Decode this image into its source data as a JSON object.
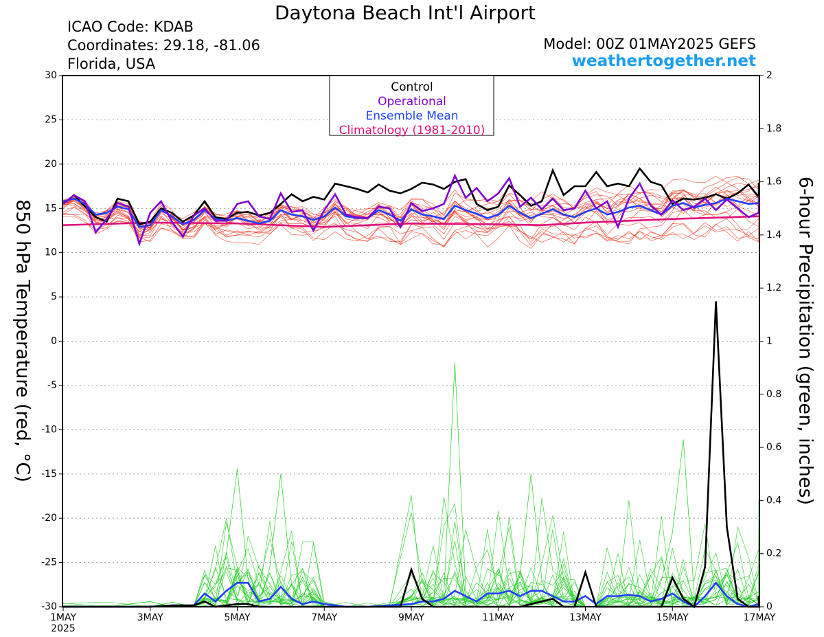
{
  "header": {
    "title": "Daytona Beach Int'l Airport",
    "icao": "ICAO Code: KDAB",
    "coordinates": "Coordinates: 29.18, -81.06",
    "region": "Florida, USA",
    "model": "Model: 00Z 01MAY2025 GEFS",
    "site": "weathertogether.net"
  },
  "chart_data": {
    "type": "line",
    "left_axis": {
      "label": "850 hPa Temperature (red, °C)",
      "range": [
        -30,
        30
      ],
      "ticks": [
        30,
        25,
        20,
        15,
        10,
        5,
        0,
        -5,
        -10,
        -15,
        -20,
        -25,
        -30
      ]
    },
    "right_axis": {
      "label": "6-hour Precipitation (green, inches)",
      "range": [
        0,
        2
      ],
      "ticks": [
        2,
        1.8,
        1.6,
        1.4,
        1.2,
        1,
        0.8,
        0.6,
        0.4,
        0.2,
        0
      ],
      "tick_labels": [
        "2",
        "1.8",
        "1.6",
        "1.4",
        "1.2",
        "1",
        "0.8",
        "0.6",
        "0.4",
        "0.2",
        "0"
      ]
    },
    "x_axis": {
      "range_days": [
        1,
        17
      ],
      "ticks": [
        {
          "day": 1,
          "label": "1MAY",
          "sub": "2025"
        },
        {
          "day": 3,
          "label": "3MAY"
        },
        {
          "day": 5,
          "label": "5MAY"
        },
        {
          "day": 7,
          "label": "7MAY"
        },
        {
          "day": 9,
          "label": "9MAY"
        },
        {
          "day": 11,
          "label": "11MAY"
        },
        {
          "day": 13,
          "label": "13MAY"
        },
        {
          "day": 15,
          "label": "15MAY"
        },
        {
          "day": 17,
          "label": "17MAY"
        }
      ]
    },
    "grid": "horizontal dotted",
    "legend": {
      "position": "top-center",
      "entries": [
        {
          "label": "Control",
          "color": "#000000"
        },
        {
          "label": "Operational",
          "color": "#8000d0"
        },
        {
          "label": "Ensemble Mean",
          "color": "#2040ff"
        },
        {
          "label": "Climatology (1981-2010)",
          "color": "#e0107a"
        }
      ]
    },
    "colors": {
      "members_temp": "#f03018",
      "members_precip": "#22cc22",
      "control": "#000000",
      "operational": "#8000d0",
      "mean": "#2040ff",
      "climatology": "#e0107a"
    },
    "temperature": {
      "control": [
        [
          1,
          15.5
        ],
        [
          1.25,
          16.5
        ],
        [
          1.5,
          15.2
        ],
        [
          1.75,
          14
        ],
        [
          2,
          13.5
        ],
        [
          2.25,
          16.1
        ],
        [
          2.5,
          15.8
        ],
        [
          2.75,
          13.2
        ],
        [
          3,
          13.5
        ],
        [
          3.25,
          15
        ],
        [
          3.5,
          14.5
        ],
        [
          3.75,
          13.5
        ],
        [
          4,
          14.2
        ],
        [
          4.25,
          15.8
        ],
        [
          4.5,
          14
        ],
        [
          4.75,
          13.8
        ],
        [
          5,
          14.5
        ],
        [
          5.25,
          14.6
        ],
        [
          5.5,
          14.2
        ],
        [
          5.75,
          14.5
        ],
        [
          6,
          15.5
        ],
        [
          6.25,
          16.6
        ],
        [
          6.5,
          15.8
        ],
        [
          6.75,
          16.3
        ],
        [
          7,
          16
        ],
        [
          7.25,
          17.8
        ],
        [
          7.5,
          17.5
        ],
        [
          7.75,
          17.2
        ],
        [
          8,
          16.8
        ],
        [
          8.25,
          17.7
        ],
        [
          8.5,
          17
        ],
        [
          8.75,
          16.7
        ],
        [
          9,
          17.2
        ],
        [
          9.25,
          17.9
        ],
        [
          9.5,
          17.7
        ],
        [
          9.75,
          17.2
        ],
        [
          10,
          18
        ],
        [
          10.25,
          18.3
        ],
        [
          10.5,
          15.5
        ],
        [
          10.75,
          14.8
        ],
        [
          11,
          15.2
        ],
        [
          11.25,
          17.6
        ],
        [
          11.5,
          16.5
        ],
        [
          11.75,
          15.3
        ],
        [
          12,
          15.8
        ],
        [
          12.25,
          19.3
        ],
        [
          12.5,
          16.5
        ],
        [
          12.75,
          17.5
        ],
        [
          13,
          17.5
        ],
        [
          13.25,
          19.1
        ],
        [
          13.5,
          17.5
        ],
        [
          13.75,
          17.8
        ],
        [
          14,
          17.5
        ],
        [
          14.25,
          19.5
        ],
        [
          14.5,
          18
        ],
        [
          14.75,
          17.6
        ],
        [
          15,
          15.5
        ],
        [
          15.25,
          16.1
        ],
        [
          15.5,
          16
        ],
        [
          15.75,
          16.2
        ],
        [
          16,
          16.6
        ],
        [
          16.25,
          16.1
        ],
        [
          16.5,
          16.7
        ],
        [
          16.75,
          17.7
        ],
        [
          17,
          16.3
        ],
        [
          17.25,
          17.9
        ]
      ],
      "operational": [
        [
          1,
          15.5
        ],
        [
          1.25,
          16.5
        ],
        [
          1.5,
          15.8
        ],
        [
          1.75,
          12.3
        ],
        [
          2,
          13.8
        ],
        [
          2.25,
          15.6
        ],
        [
          2.5,
          15.2
        ],
        [
          2.75,
          11
        ],
        [
          3,
          14.5
        ],
        [
          3.25,
          15.8
        ],
        [
          3.5,
          13.5
        ],
        [
          3.75,
          11.8
        ],
        [
          4,
          14.2
        ],
        [
          4.25,
          15
        ],
        [
          4.5,
          13.6
        ],
        [
          4.75,
          13.6
        ],
        [
          5,
          15.5
        ],
        [
          5.25,
          15.8
        ],
        [
          5.5,
          14.1
        ],
        [
          5.75,
          13.8
        ],
        [
          6,
          16.7
        ],
        [
          6.25,
          14.6
        ],
        [
          6.5,
          14.8
        ],
        [
          6.75,
          12.5
        ],
        [
          7,
          14.8
        ],
        [
          7.25,
          16.6
        ],
        [
          7.5,
          14.3
        ],
        [
          7.75,
          14
        ],
        [
          8,
          13.9
        ],
        [
          8.25,
          15.2
        ],
        [
          8.5,
          15
        ],
        [
          8.75,
          12.9
        ],
        [
          9,
          15.6
        ],
        [
          9.25,
          14.7
        ],
        [
          9.5,
          15
        ],
        [
          9.75,
          15.5
        ],
        [
          10,
          18.7
        ],
        [
          10.25,
          16.2
        ],
        [
          10.5,
          17.3
        ],
        [
          10.75,
          15.8
        ],
        [
          11,
          16.7
        ],
        [
          11.25,
          18.4
        ],
        [
          11.5,
          15.2
        ],
        [
          11.75,
          16.2
        ],
        [
          12,
          14.9
        ],
        [
          12.25,
          16.1
        ],
        [
          12.5,
          14.8
        ],
        [
          12.75,
          15
        ],
        [
          13,
          17
        ],
        [
          13.25,
          15
        ],
        [
          13.5,
          15.8
        ],
        [
          13.75,
          12.9
        ],
        [
          14,
          16.1
        ],
        [
          14.25,
          17.8
        ],
        [
          14.5,
          15.3
        ],
        [
          14.75,
          14.3
        ],
        [
          15,
          15.9
        ],
        [
          15.25,
          14.8
        ],
        [
          15.5,
          15.2
        ],
        [
          15.75,
          16.1
        ],
        [
          16,
          14.8
        ],
        [
          16.25,
          16
        ],
        [
          16.5,
          15
        ],
        [
          16.75,
          14
        ],
        [
          17,
          14.5
        ],
        [
          17.25,
          16.4
        ]
      ],
      "mean": [
        [
          1,
          15.8
        ],
        [
          1.25,
          16.1
        ],
        [
          1.5,
          15.5
        ],
        [
          1.75,
          14.3
        ],
        [
          2,
          14.5
        ],
        [
          2.25,
          15.2
        ],
        [
          2.5,
          14.9
        ],
        [
          2.75,
          12.9
        ],
        [
          3,
          13.1
        ],
        [
          3.25,
          14.8
        ],
        [
          3.5,
          14.1
        ],
        [
          3.75,
          13.2
        ],
        [
          4,
          13.7
        ],
        [
          4.25,
          14.8
        ],
        [
          4.5,
          13.8
        ],
        [
          4.75,
          13.6
        ],
        [
          5,
          13.9
        ],
        [
          5.25,
          13.6
        ],
        [
          5.5,
          13.3
        ],
        [
          5.75,
          13.6
        ],
        [
          6,
          14.8
        ],
        [
          6.25,
          14.3
        ],
        [
          6.5,
          14.1
        ],
        [
          6.75,
          13.7
        ],
        [
          7,
          14.1
        ],
        [
          7.25,
          15.1
        ],
        [
          7.5,
          14.1
        ],
        [
          7.75,
          13.9
        ],
        [
          8,
          13.9
        ],
        [
          8.25,
          14.8
        ],
        [
          8.5,
          14.3
        ],
        [
          8.75,
          13.6
        ],
        [
          9,
          14.9
        ],
        [
          9.25,
          14.3
        ],
        [
          9.5,
          14.1
        ],
        [
          9.75,
          13.8
        ],
        [
          10,
          15.3
        ],
        [
          10.25,
          14.8
        ],
        [
          10.5,
          14.4
        ],
        [
          10.75,
          13.9
        ],
        [
          11,
          14.3
        ],
        [
          11.25,
          15.3
        ],
        [
          11.5,
          14.5
        ],
        [
          11.75,
          13.9
        ],
        [
          12,
          14.4
        ],
        [
          12.25,
          14.9
        ],
        [
          12.5,
          14.3
        ],
        [
          12.75,
          14
        ],
        [
          13,
          14.6
        ],
        [
          13.25,
          15
        ],
        [
          13.5,
          14.3
        ],
        [
          13.75,
          14.6
        ],
        [
          14,
          15.1
        ],
        [
          14.25,
          15.3
        ],
        [
          14.5,
          14.8
        ],
        [
          14.75,
          14.3
        ],
        [
          15,
          15.3
        ],
        [
          15.25,
          15.6
        ],
        [
          15.5,
          15.1
        ],
        [
          15.75,
          15.4
        ],
        [
          16,
          15.6
        ],
        [
          16.25,
          16.1
        ],
        [
          16.5,
          15.8
        ],
        [
          16.75,
          15.5
        ],
        [
          17,
          15.6
        ],
        [
          17.25,
          16.2
        ]
      ],
      "climatology": [
        [
          1,
          13.1
        ],
        [
          3,
          13.4
        ],
        [
          5,
          13.3
        ],
        [
          7,
          12.9
        ],
        [
          9,
          13.3
        ],
        [
          11,
          13.2
        ],
        [
          12,
          13.1
        ],
        [
          13,
          13.4
        ],
        [
          15,
          13.8
        ],
        [
          17.25,
          14.1
        ]
      ]
    },
    "precipitation": {
      "control": [
        [
          1,
          0
        ],
        [
          2,
          0
        ],
        [
          3,
          0
        ],
        [
          3.5,
          0.005
        ],
        [
          4,
          0.005
        ],
        [
          4.25,
          0.02
        ],
        [
          4.5,
          0
        ],
        [
          4.75,
          0.005
        ],
        [
          5,
          0.01
        ],
        [
          5.25,
          0.01
        ],
        [
          5.5,
          0
        ],
        [
          6,
          0
        ],
        [
          7,
          0
        ],
        [
          7.5,
          0
        ],
        [
          8,
          0
        ],
        [
          8.75,
          0
        ],
        [
          9,
          0.14
        ],
        [
          9.25,
          0.03
        ],
        [
          9.5,
          0
        ],
        [
          10,
          0
        ],
        [
          10.5,
          0
        ],
        [
          11,
          0
        ],
        [
          11.5,
          0
        ],
        [
          12,
          0.02
        ],
        [
          12.25,
          0.03
        ],
        [
          12.5,
          0
        ],
        [
          12.75,
          0
        ],
        [
          13,
          0.13
        ],
        [
          13.25,
          0
        ],
        [
          13.5,
          0
        ],
        [
          14,
          0
        ],
        [
          14.5,
          0
        ],
        [
          14.75,
          0
        ],
        [
          15,
          0.11
        ],
        [
          15.25,
          0.03
        ],
        [
          15.5,
          0
        ],
        [
          15.75,
          0.15
        ],
        [
          16,
          1.15
        ],
        [
          16.25,
          0.3
        ],
        [
          16.5,
          0.03
        ],
        [
          16.75,
          0
        ],
        [
          17,
          0
        ],
        [
          17.25,
          0.04
        ]
      ],
      "mean": [
        [
          1,
          0
        ],
        [
          2,
          0
        ],
        [
          3,
          0
        ],
        [
          3.5,
          0.005
        ],
        [
          4,
          0.005
        ],
        [
          4.25,
          0.05
        ],
        [
          4.5,
          0.02
        ],
        [
          4.75,
          0.06
        ],
        [
          5,
          0.09
        ],
        [
          5.25,
          0.09
        ],
        [
          5.5,
          0.02
        ],
        [
          5.75,
          0.03
        ],
        [
          6,
          0.075
        ],
        [
          6.25,
          0.03
        ],
        [
          6.5,
          0.01
        ],
        [
          6.75,
          0.02
        ],
        [
          7,
          0.01
        ],
        [
          7.5,
          0
        ],
        [
          8,
          0
        ],
        [
          8.5,
          0.005
        ],
        [
          9,
          0.01
        ],
        [
          9.25,
          0.02
        ],
        [
          9.5,
          0.02
        ],
        [
          9.75,
          0.03
        ],
        [
          10,
          0.06
        ],
        [
          10.25,
          0.04
        ],
        [
          10.5,
          0.02
        ],
        [
          10.75,
          0.05
        ],
        [
          11,
          0.05
        ],
        [
          11.25,
          0.06
        ],
        [
          11.5,
          0.04
        ],
        [
          11.75,
          0.06
        ],
        [
          12,
          0.06
        ],
        [
          12.25,
          0.04
        ],
        [
          12.5,
          0.02
        ],
        [
          12.75,
          0.02
        ],
        [
          13,
          0.04
        ],
        [
          13.25,
          0.01
        ],
        [
          13.5,
          0.04
        ],
        [
          13.75,
          0.04
        ],
        [
          14,
          0.045
        ],
        [
          14.25,
          0.04
        ],
        [
          14.5,
          0.02
        ],
        [
          14.75,
          0.03
        ],
        [
          15,
          0.05
        ],
        [
          15.25,
          0.02
        ],
        [
          15.5,
          0
        ],
        [
          15.75,
          0.04
        ],
        [
          16,
          0.09
        ],
        [
          16.25,
          0.04
        ],
        [
          16.5,
          0.01
        ],
        [
          16.75,
          0
        ],
        [
          17,
          0.01
        ],
        [
          17.25,
          0.04
        ]
      ]
    }
  }
}
